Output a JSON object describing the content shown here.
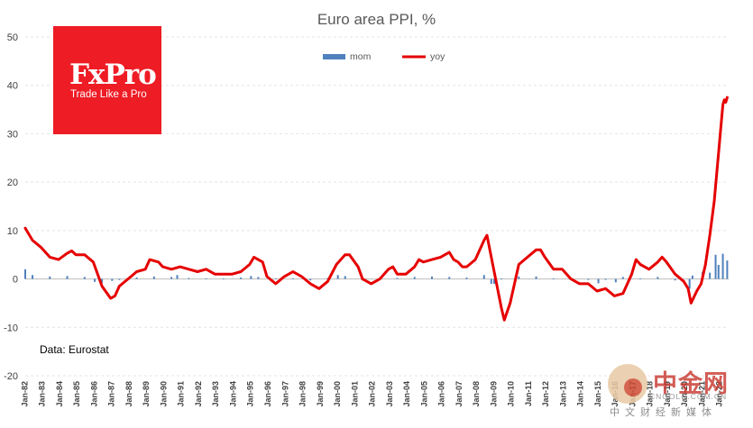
{
  "chart_data": {
    "type": "bar+line",
    "title": "Euro area PPI, %",
    "source": "Data: Eurostat",
    "ylim": [
      -20,
      50
    ],
    "yticks": [
      -20,
      -10,
      0,
      10,
      20,
      30,
      40,
      50
    ],
    "grid": true,
    "legend_position": "top-center",
    "x_tick_labels": [
      "Jan-82",
      "Jan-83",
      "Jan-84",
      "Jan-85",
      "Jan-86",
      "Jan-87",
      "Jan-88",
      "Jan-89",
      "Jan-90",
      "Jan-91",
      "Jan-92",
      "Jan-93",
      "Jan-94",
      "Jan-95",
      "Jan-96",
      "Jan-97",
      "Jan-98",
      "Jan-99",
      "Jan-00",
      "Jan-01",
      "Jan-02",
      "Jan-03",
      "Jan-04",
      "Jan-05",
      "Jan-06",
      "Jan-07",
      "Jan-08",
      "Jan-09",
      "Jan-10",
      "Jan-11",
      "Jan-12",
      "Jan-13",
      "Jan-14",
      "Jan-15",
      "Jan-16",
      "Jan-17",
      "Jan-18",
      "Jan-19",
      "Jan-20",
      "Jan-21",
      "Jan-22"
    ],
    "series": [
      {
        "name": "mom",
        "kind": "bar",
        "color": "#4f81bd",
        "points": [
          [
            "1982-01",
            2.0
          ],
          [
            "1982-06",
            0.8
          ],
          [
            "1983-06",
            0.5
          ],
          [
            "1984-06",
            0.6
          ],
          [
            "1985-06",
            0.4
          ],
          [
            "1986-01",
            -0.6
          ],
          [
            "1986-06",
            -0.8
          ],
          [
            "1987-01",
            -0.4
          ],
          [
            "1987-06",
            -0.2
          ],
          [
            "1988-06",
            0.3
          ],
          [
            "1989-06",
            0.5
          ],
          [
            "1990-06",
            0.4
          ],
          [
            "1990-10",
            0.8
          ],
          [
            "1991-06",
            0.2
          ],
          [
            "1992-06",
            0.1
          ],
          [
            "1993-06",
            0.1
          ],
          [
            "1994-06",
            0.3
          ],
          [
            "1995-01",
            0.6
          ],
          [
            "1995-06",
            0.4
          ],
          [
            "1996-06",
            0.1
          ],
          [
            "1997-06",
            0.1
          ],
          [
            "1998-06",
            -0.3
          ],
          [
            "1999-06",
            0.2
          ],
          [
            "2000-01",
            0.8
          ],
          [
            "2000-06",
            0.6
          ],
          [
            "2001-06",
            -0.3
          ],
          [
            "2002-06",
            0.2
          ],
          [
            "2003-06",
            0.2
          ],
          [
            "2004-06",
            0.4
          ],
          [
            "2005-06",
            0.5
          ],
          [
            "2006-06",
            0.4
          ],
          [
            "2007-06",
            0.3
          ],
          [
            "2008-06",
            0.8
          ],
          [
            "2008-11",
            -1.0
          ],
          [
            "2009-01",
            -1.0
          ],
          [
            "2009-06",
            0.1
          ],
          [
            "2010-06",
            0.5
          ],
          [
            "2011-06",
            0.5
          ],
          [
            "2012-06",
            0.1
          ],
          [
            "2013-06",
            -0.2
          ],
          [
            "2014-06",
            -0.2
          ],
          [
            "2015-01",
            -0.9
          ],
          [
            "2015-06",
            -0.2
          ],
          [
            "2016-01",
            -0.7
          ],
          [
            "2016-06",
            0.4
          ],
          [
            "2017-06",
            0.1
          ],
          [
            "2018-06",
            0.4
          ],
          [
            "2019-06",
            -0.3
          ],
          [
            "2020-04",
            -2.0
          ],
          [
            "2020-06",
            0.7
          ],
          [
            "2021-01",
            1.5
          ],
          [
            "2021-06",
            1.3
          ],
          [
            "2021-10",
            5.0
          ],
          [
            "2021-12",
            2.9
          ],
          [
            "2022-03",
            5.2
          ],
          [
            "2022-06",
            3.8
          ]
        ]
      },
      {
        "name": "yoy",
        "kind": "line",
        "color": "#e60000",
        "points": [
          [
            "1982-01",
            10.5
          ],
          [
            "1982-06",
            8.0
          ],
          [
            "1982-12",
            6.5
          ],
          [
            "1983-06",
            4.5
          ],
          [
            "1983-12",
            4.0
          ],
          [
            "1984-06",
            5.3
          ],
          [
            "1984-09",
            5.8
          ],
          [
            "1984-12",
            5.0
          ],
          [
            "1985-06",
            5.0
          ],
          [
            "1985-12",
            3.5
          ],
          [
            "1986-06",
            -1.5
          ],
          [
            "1986-12",
            -4.0
          ],
          [
            "1987-03",
            -3.5
          ],
          [
            "1987-06",
            -1.5
          ],
          [
            "1987-12",
            0.0
          ],
          [
            "1988-06",
            1.5
          ],
          [
            "1988-12",
            2.0
          ],
          [
            "1989-03",
            4.0
          ],
          [
            "1989-09",
            3.5
          ],
          [
            "1989-12",
            2.5
          ],
          [
            "1990-06",
            2.0
          ],
          [
            "1990-12",
            2.5
          ],
          [
            "1991-06",
            2.0
          ],
          [
            "1991-12",
            1.5
          ],
          [
            "1992-06",
            2.0
          ],
          [
            "1992-12",
            1.0
          ],
          [
            "1993-06",
            1.0
          ],
          [
            "1993-12",
            1.0
          ],
          [
            "1994-06",
            1.5
          ],
          [
            "1994-12",
            3.0
          ],
          [
            "1995-03",
            4.5
          ],
          [
            "1995-09",
            3.5
          ],
          [
            "1995-12",
            0.5
          ],
          [
            "1996-06",
            -1.0
          ],
          [
            "1996-12",
            0.5
          ],
          [
            "1997-06",
            1.5
          ],
          [
            "1997-12",
            0.5
          ],
          [
            "1998-06",
            -1.0
          ],
          [
            "1998-12",
            -2.0
          ],
          [
            "1999-06",
            -0.5
          ],
          [
            "1999-12",
            3.0
          ],
          [
            "2000-06",
            5.0
          ],
          [
            "2000-09",
            5.0
          ],
          [
            "2001-03",
            2.5
          ],
          [
            "2001-06",
            0.0
          ],
          [
            "2001-12",
            -1.0
          ],
          [
            "2002-06",
            0.0
          ],
          [
            "2002-12",
            2.0
          ],
          [
            "2003-03",
            2.5
          ],
          [
            "2003-06",
            1.0
          ],
          [
            "2003-12",
            1.0
          ],
          [
            "2004-06",
            2.5
          ],
          [
            "2004-09",
            4.0
          ],
          [
            "2004-12",
            3.5
          ],
          [
            "2005-06",
            4.0
          ],
          [
            "2005-12",
            4.5
          ],
          [
            "2006-06",
            5.5
          ],
          [
            "2006-09",
            4.0
          ],
          [
            "2006-12",
            3.5
          ],
          [
            "2007-03",
            2.5
          ],
          [
            "2007-06",
            2.5
          ],
          [
            "2007-12",
            4.0
          ],
          [
            "2008-06",
            8.0
          ],
          [
            "2008-08",
            9.0
          ],
          [
            "2008-12",
            3.0
          ],
          [
            "2009-06",
            -6.0
          ],
          [
            "2009-08",
            -8.5
          ],
          [
            "2009-12",
            -5.0
          ],
          [
            "2010-06",
            3.0
          ],
          [
            "2010-12",
            4.5
          ],
          [
            "2011-06",
            6.0
          ],
          [
            "2011-09",
            6.0
          ],
          [
            "2011-12",
            4.5
          ],
          [
            "2012-06",
            2.0
          ],
          [
            "2012-12",
            2.0
          ],
          [
            "2013-06",
            0.0
          ],
          [
            "2013-12",
            -1.0
          ],
          [
            "2014-06",
            -1.0
          ],
          [
            "2014-12",
            -2.5
          ],
          [
            "2015-06",
            -2.0
          ],
          [
            "2015-12",
            -3.5
          ],
          [
            "2016-06",
            -3.0
          ],
          [
            "2016-12",
            1.0
          ],
          [
            "2017-03",
            4.0
          ],
          [
            "2017-06",
            3.0
          ],
          [
            "2017-12",
            2.0
          ],
          [
            "2018-06",
            3.5
          ],
          [
            "2018-09",
            4.5
          ],
          [
            "2018-12",
            3.5
          ],
          [
            "2019-06",
            1.0
          ],
          [
            "2019-12",
            -0.5
          ],
          [
            "2020-03",
            -2.0
          ],
          [
            "2020-05",
            -5.0
          ],
          [
            "2020-09",
            -2.5
          ],
          [
            "2020-12",
            -1.0
          ],
          [
            "2021-03",
            3.0
          ],
          [
            "2021-06",
            9.0
          ],
          [
            "2021-09",
            16.0
          ],
          [
            "2021-12",
            26.0
          ],
          [
            "2022-03",
            36.0
          ],
          [
            "2022-04",
            37.0
          ],
          [
            "2022-05",
            36.5
          ],
          [
            "2022-06",
            37.5
          ]
        ]
      }
    ]
  },
  "logo": {
    "name": "FxPro",
    "tagline": "Trade Like a Pro",
    "color": "#ee1c25"
  },
  "watermark": {
    "name": "中金网",
    "url": "CNGOLD.COM.CN",
    "subtitle": "中文财经新媒体"
  }
}
